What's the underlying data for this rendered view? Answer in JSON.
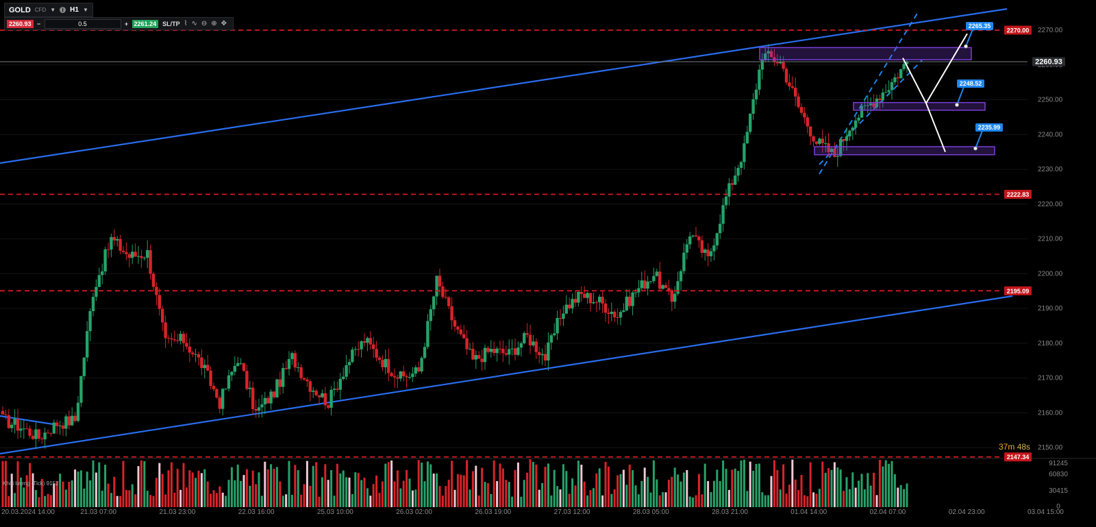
{
  "toolbar": {
    "symbol": "GOLD",
    "symbol_type": "CFD",
    "timeframe": "H1",
    "sell_price": "2260.93",
    "quantity": "0.5",
    "buy_price": "2261.24",
    "sltp_label": "SL/TP",
    "minus": "−",
    "plus": "+"
  },
  "countdown": {
    "minutes": "37m",
    "seconds": "48s"
  },
  "volume_label": "Khối lượng (Tick) 9152",
  "colors": {
    "bull": "#26a269",
    "bear": "#d8232a",
    "channel": "#2a6ef0",
    "resistance": "#d81b22",
    "zone": "#7a3fd6",
    "label_blue": "#1c86f2",
    "vol_bull": "#26a269",
    "vol_bear": "#d8232a",
    "vol_light": "#f0c8d4"
  },
  "chart_data": {
    "type": "candlestick",
    "symbol": "GOLD",
    "timeframe": "H1",
    "y_range": [
      2148,
      2276
    ],
    "y_ticks": [
      2150,
      2160,
      2170,
      2180,
      2190,
      2200,
      2210,
      2220,
      2230,
      2240,
      2250,
      2260,
      2270
    ],
    "x_ticks": [
      "20.03.2024 14:00",
      "21.03 07:00",
      "21.03 23:00",
      "22.03 16:00",
      "25.03 10:00",
      "26.03 02:00",
      "26.03 19:00",
      "27.03 12:00",
      "28.03 05:00",
      "28.03 21:00",
      "01.04 14:00",
      "02.04 07:00",
      "02.04 23:00",
      "03.04 15:00"
    ],
    "current_price": 2260.93,
    "horizontal_levels": [
      2270.0,
      2222.83,
      2195.09,
      2147.34
    ],
    "price_labels": [
      "2270.00",
      "2222.83",
      "2195.09",
      "2147.34",
      "2260.93"
    ],
    "target_labels": [
      {
        "text": "2265.35",
        "value": 2265.35
      },
      {
        "text": "2248.52",
        "value": 2248.52
      },
      {
        "text": "2235.99",
        "value": 2235.99
      }
    ],
    "zones": [
      {
        "from": 2261.5,
        "to": 2265.0
      },
      {
        "from": 2247.0,
        "to": 2249.2
      },
      {
        "from": 2234.2,
        "to": 2236.5
      }
    ],
    "channel": [
      {
        "x": "20.03.2024 14:00",
        "y1": 2231.5,
        "x2": "03.04 15:00",
        "y2": 2276
      },
      {
        "x": "20.03.2024 14:00",
        "y1": 2148.5,
        "x2": "03.04 15:00",
        "y2": 2193.5
      }
    ],
    "forecast_path": [
      2262.0,
      2247.0,
      2235.0,
      2247.0,
      2269.0
    ],
    "keypoints": [
      2158,
      2156,
      2153,
      2157,
      2158,
      2195,
      2210,
      2205,
      2206,
      2180,
      2181,
      2174,
      2163,
      2176,
      2160,
      2166,
      2176,
      2168,
      2163,
      2174,
      2181,
      2175,
      2170,
      2172,
      2198,
      2185,
      2175,
      2178,
      2177,
      2182,
      2176,
      2190,
      2194,
      2192,
      2188,
      2195,
      2200,
      2192,
      2212,
      2204,
      2222,
      2236,
      2263,
      2261,
      2248,
      2238,
      2234,
      2244,
      2249,
      2254,
      2261
    ],
    "volume_ticks": [
      "91245",
      "60830",
      "30415",
      "0"
    ]
  }
}
